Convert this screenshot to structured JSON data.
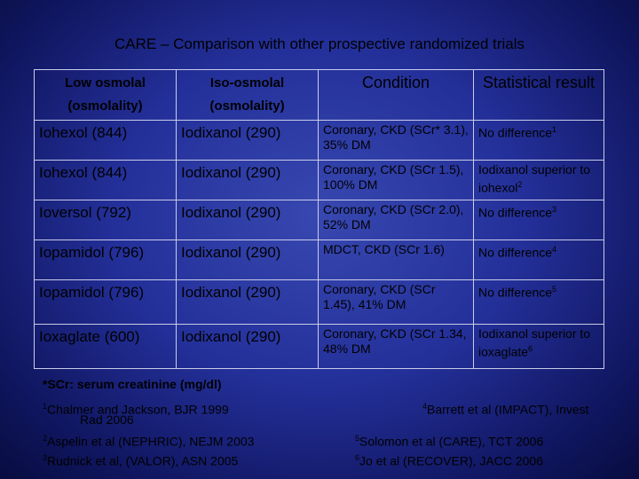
{
  "title": "CARE – Comparison with other prospective randomized trials",
  "table": {
    "headers": [
      "Low osmolal (osmolality)",
      "Iso-osmolal (osmolality)",
      "Condition",
      "Statistical result"
    ],
    "rows": [
      [
        "Iohexol (844)",
        "Iodixanol (290)",
        "Coronary, CKD (SCr* 3.1), 35% DM",
        {
          "text": "No difference",
          "sup": "1"
        }
      ],
      [
        "Iohexol (844)",
        "Iodixanol (290)",
        "Coronary, CKD (SCr 1.5), 100% DM",
        {
          "text": "Iodixanol superior to iohexol",
          "sup": "2"
        }
      ],
      [
        "Ioversol (792)",
        "Iodixanol (290)",
        "Coronary, CKD (SCr 2.0), 52% DM",
        {
          "text": "No difference",
          "sup": "3"
        }
      ],
      [
        "Iopamidol (796)",
        "Iodixanol (290)",
        "MDCT, CKD (SCr 1.6)",
        {
          "text": "No difference",
          "sup": "4"
        }
      ],
      [
        "Iopamidol (796)",
        "Iodixanol (290)",
        "Coronary, CKD (SCr 1.45), 41% DM",
        {
          "text": "No difference",
          "sup": "5"
        }
      ],
      [
        "Ioxaglate (600)",
        "Iodixanol (290)",
        "Coronary, CKD (SCr 1.34, 48% DM",
        {
          "text": "Iodixanol superior to ioxaglate",
          "sup": "6"
        }
      ]
    ]
  },
  "footnote": "*SCr: serum creatinine (mg/dl)",
  "references": [
    {
      "sup": "1",
      "text": "Chalmer and Jackson, BJR 1999"
    },
    {
      "sup": "2",
      "text": "Aspelin et al (NEPHRIC), NEJM 2003"
    },
    {
      "sup": "3",
      "text": "Rudnick et al, (VALOR), ASN 2005"
    },
    {
      "sup": "4",
      "text": "Barrett et al (IMPACT), Invest",
      "continuation": "Rad 2006"
    },
    {
      "sup": "5",
      "text": "Solomon et al (CARE), TCT 2006"
    },
    {
      "sup": "6",
      "text": "Jo et al (RECOVER), JACC 2006"
    }
  ]
}
